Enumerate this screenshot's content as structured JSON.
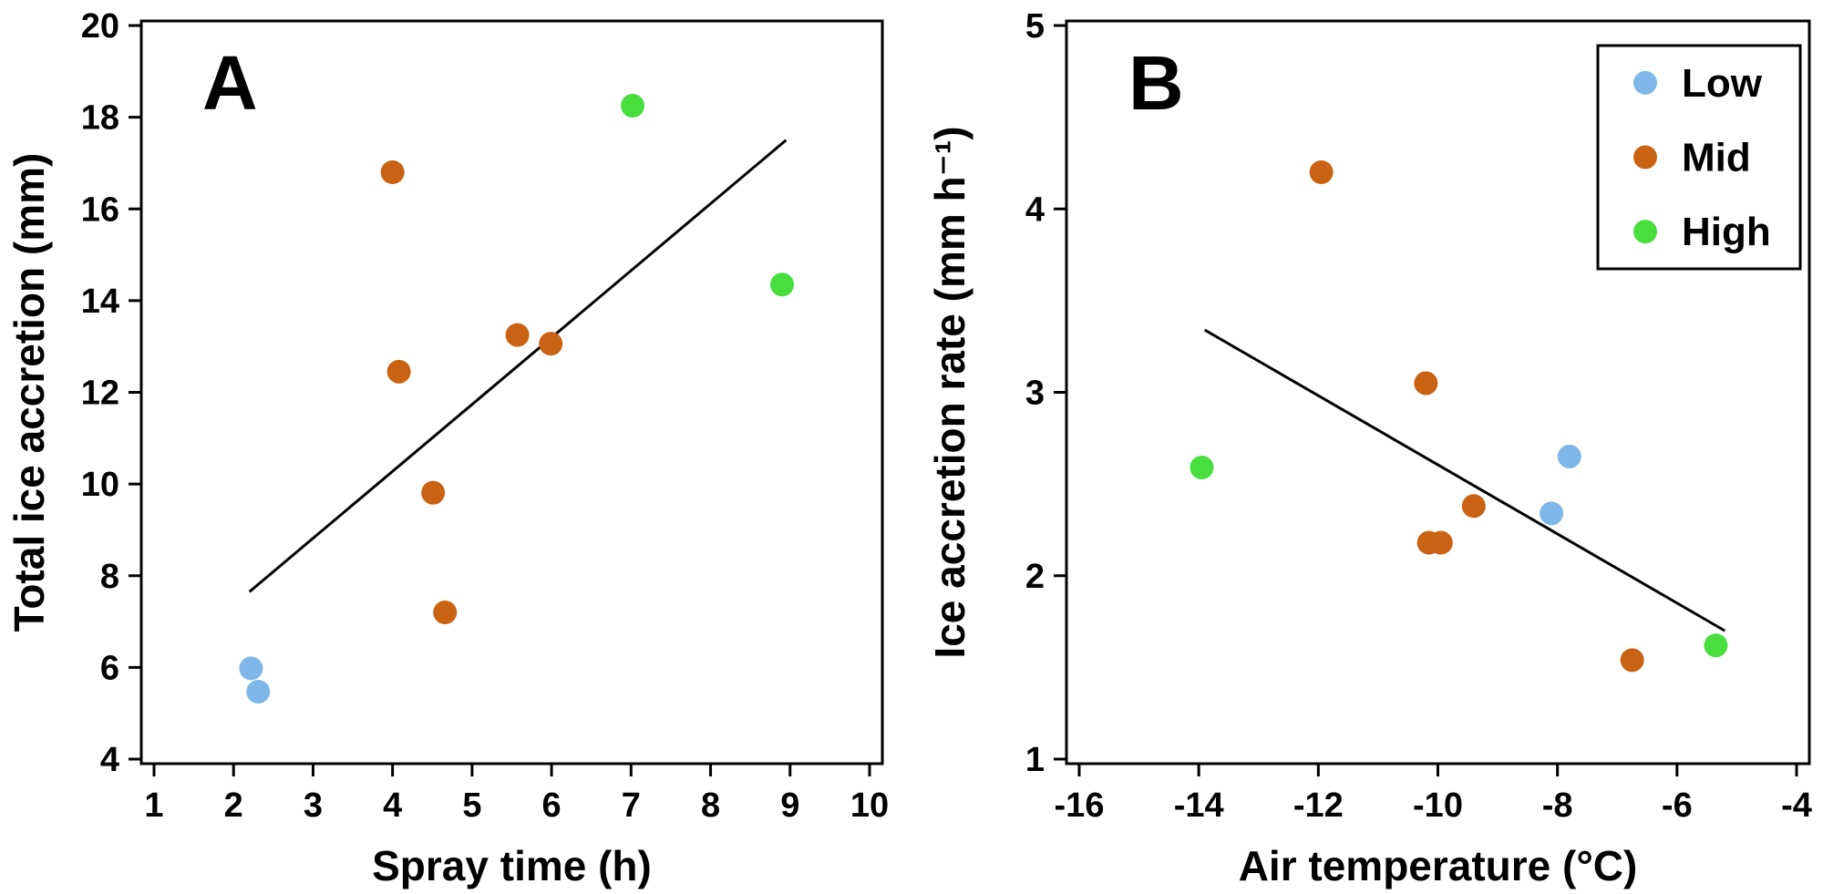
{
  "figure": {
    "background": "#ffffff",
    "axis_color": "#000000"
  },
  "palette": {
    "low": "#7FB8E8",
    "mid": "#C96212",
    "high": "#47DE3E"
  },
  "chart_data": [
    {
      "id": "panel-a",
      "type": "scatter",
      "panel_label": "A",
      "xlabel": "Spray time (h)",
      "ylabel": "Total ice accretion (mm)",
      "xlim": [
        1,
        10
      ],
      "ylim": [
        4,
        20
      ],
      "xticks": [
        1,
        2,
        3,
        4,
        5,
        6,
        7,
        8,
        9,
        10
      ],
      "yticks": [
        4,
        6,
        8,
        10,
        12,
        14,
        16,
        18,
        20
      ],
      "grid": false,
      "series": [
        {
          "name": "Low",
          "color": "#7FB8E8",
          "points": [
            [
              2.22,
              5.98
            ],
            [
              2.31,
              5.47
            ]
          ]
        },
        {
          "name": "Mid",
          "color": "#C96212",
          "points": [
            [
              4.0,
              16.8
            ],
            [
              4.08,
              12.45
            ],
            [
              4.51,
              9.81
            ],
            [
              4.66,
              7.2
            ],
            [
              5.57,
              13.25
            ],
            [
              5.99,
              13.06
            ]
          ]
        },
        {
          "name": "High",
          "color": "#47DE3E",
          "points": [
            [
              7.02,
              18.25
            ],
            [
              8.9,
              14.35
            ]
          ]
        }
      ],
      "trend_line": {
        "x": [
          2.2,
          8.95
        ],
        "y": [
          7.65,
          17.5
        ],
        "color": "#000000"
      }
    },
    {
      "id": "panel-b",
      "type": "scatter",
      "panel_label": "B",
      "xlabel": "Air temperature (°C)",
      "ylabel": "Ice accretion rate (mm h⁻¹)",
      "xlim": [
        -16,
        -4
      ],
      "ylim": [
        1,
        5
      ],
      "xticks": [
        -16,
        -14,
        -12,
        -10,
        -8,
        -6,
        -4
      ],
      "yticks": [
        1,
        2,
        3,
        4,
        5
      ],
      "grid": false,
      "series": [
        {
          "name": "Low",
          "color": "#7FB8E8",
          "points": [
            [
              -7.8,
              2.65
            ],
            [
              -8.1,
              2.34
            ]
          ]
        },
        {
          "name": "Mid",
          "color": "#C96212",
          "points": [
            [
              -11.95,
              4.2
            ],
            [
              -10.2,
              3.05
            ],
            [
              -9.4,
              2.38
            ],
            [
              -10.15,
              2.18
            ],
            [
              -9.95,
              2.18
            ],
            [
              -6.75,
              1.54
            ]
          ]
        },
        {
          "name": "High",
          "color": "#47DE3E",
          "points": [
            [
              -13.95,
              2.59
            ],
            [
              -5.35,
              1.62
            ]
          ]
        }
      ],
      "trend_line": {
        "x": [
          -13.9,
          -5.2
        ],
        "y": [
          3.34,
          1.7
        ],
        "color": "#000000"
      },
      "legend": {
        "position": "top-right",
        "entries": [
          {
            "label": "Low",
            "color": "#7FB8E8"
          },
          {
            "label": "Mid",
            "color": "#C96212"
          },
          {
            "label": "High",
            "color": "#47DE3E"
          }
        ]
      }
    }
  ]
}
